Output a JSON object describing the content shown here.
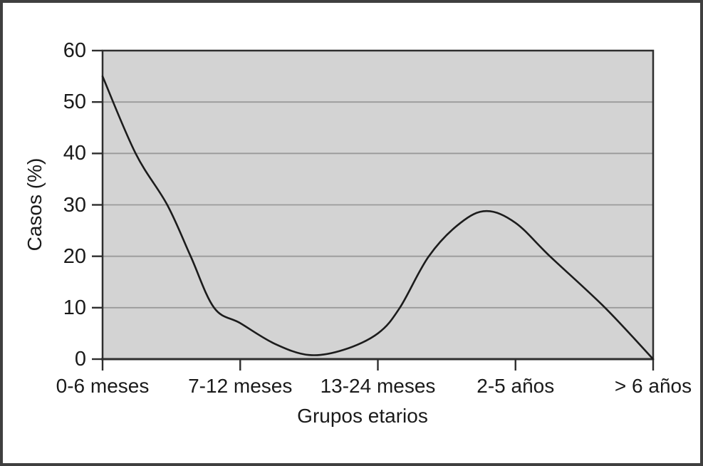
{
  "figure": {
    "background_color": "#ffffff",
    "frame_border_color": "#3f3f3f"
  },
  "chart_data": {
    "type": "line",
    "title": "",
    "xlabel": "Grupos etarios",
    "ylabel": "Casos (%)",
    "categories": [
      "0-6 meses",
      "7-12 meses",
      "13-24 meses",
      "2-5 años",
      "> 6 años"
    ],
    "y_ticks": [
      0,
      10,
      20,
      30,
      40,
      50,
      60
    ],
    "ylim": [
      0,
      60
    ],
    "xlim": [
      0,
      4
    ],
    "grid": "horizontal",
    "legend": "none",
    "plot_background": "#d3d3d3",
    "gridline_color": "#9a9a9a",
    "plot_border_color": "#2e2e2e",
    "line_color": "#1c1c1c",
    "text_color": "#1a1a1a",
    "series": [
      {
        "name": "Casos",
        "values_at_categories": [
          55,
          7,
          5,
          26.5,
          0
        ],
        "points": [
          {
            "x": 0.0,
            "y": 55.0
          },
          {
            "x": 0.24,
            "y": 40.0
          },
          {
            "x": 0.47,
            "y": 30.0
          },
          {
            "x": 0.64,
            "y": 20.0
          },
          {
            "x": 0.81,
            "y": 10.0
          },
          {
            "x": 1.0,
            "y": 7.0
          },
          {
            "x": 1.25,
            "y": 3.0
          },
          {
            "x": 1.5,
            "y": 0.8
          },
          {
            "x": 1.75,
            "y": 1.8
          },
          {
            "x": 2.0,
            "y": 5.0
          },
          {
            "x": 2.16,
            "y": 10.0
          },
          {
            "x": 2.37,
            "y": 20.0
          },
          {
            "x": 2.6,
            "y": 26.5
          },
          {
            "x": 2.79,
            "y": 28.8
          },
          {
            "x": 3.0,
            "y": 26.5
          },
          {
            "x": 3.25,
            "y": 20.0
          },
          {
            "x": 3.65,
            "y": 10.0
          },
          {
            "x": 4.0,
            "y": 0.0
          }
        ]
      }
    ]
  }
}
